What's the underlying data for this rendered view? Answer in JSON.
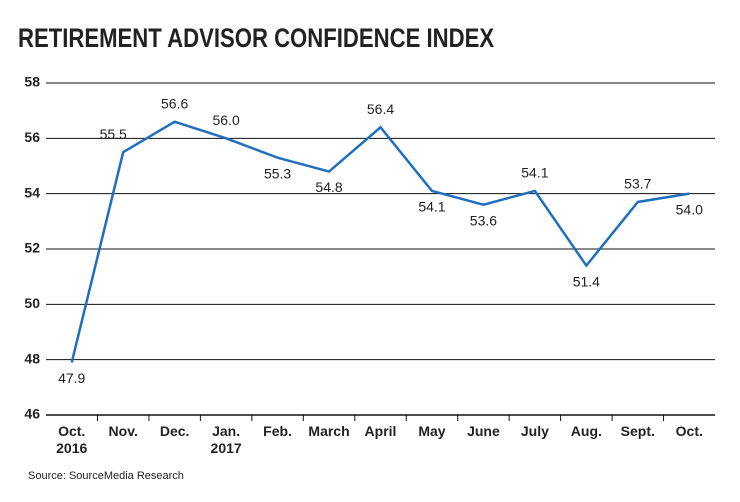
{
  "chart_data": {
    "type": "line",
    "title": "RETIREMENT ADVISOR CONFIDENCE INDEX",
    "source": "Source: SourceMedia Research",
    "categories": [
      "Oct.\n2016",
      "Nov.",
      "Dec.",
      "Jan.\n2017",
      "Feb.",
      "March",
      "April",
      "May",
      "June",
      "July",
      "Aug.",
      "Sept.",
      "Oct."
    ],
    "values": [
      47.9,
      55.5,
      56.6,
      56.0,
      55.3,
      54.8,
      56.4,
      54.1,
      53.6,
      54.1,
      51.4,
      53.7,
      54.0
    ],
    "value_labels": [
      "47.9",
      "55.5",
      "56.6",
      "56.0",
      "55.3",
      "54.8",
      "56.4",
      "54.1",
      "53.6",
      "54.1",
      "51.4",
      "53.7",
      "54.0"
    ],
    "color": "#1f6fc0",
    "ylim": [
      46,
      58
    ],
    "yticks": [
      46,
      48,
      50,
      52,
      54,
      56,
      58
    ],
    "grid": true
  }
}
